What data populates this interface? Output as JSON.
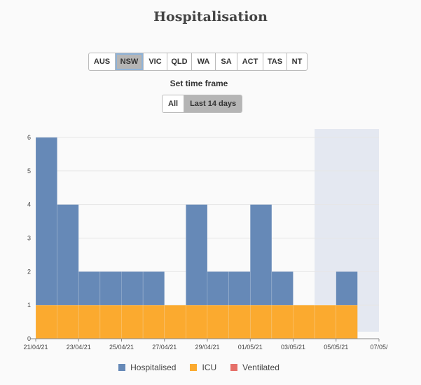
{
  "header": {
    "title": "Hospitalisation"
  },
  "regions": [
    {
      "label": "AUS",
      "active": false
    },
    {
      "label": "NSW",
      "active": true
    },
    {
      "label": "VIC",
      "active": false
    },
    {
      "label": "QLD",
      "active": false
    },
    {
      "label": "WA",
      "active": false
    },
    {
      "label": "SA",
      "active": false
    },
    {
      "label": "ACT",
      "active": false
    },
    {
      "label": "TAS",
      "active": false
    },
    {
      "label": "NT",
      "active": false
    }
  ],
  "timeframe": {
    "label": "Set time frame",
    "options": [
      {
        "label": "All",
        "active": false
      },
      {
        "label": "Last 14 days",
        "active": true
      }
    ]
  },
  "colors": {
    "hospitalised": "#6689b7",
    "icu": "#fbaa2f",
    "ventilated": "#e56f68",
    "forecast_band": "#e4e8f1",
    "grid": "#e6e6e6",
    "axis": "#888888",
    "text": "#444444"
  },
  "chart_data": {
    "type": "bar",
    "stacked": false,
    "x_dates": [
      "21/04/21",
      "22/04/21",
      "23/04/21",
      "24/04/21",
      "25/04/21",
      "26/04/21",
      "27/04/21",
      "28/04/21",
      "29/04/21",
      "30/04/21",
      "01/05/21",
      "02/05/21",
      "03/05/21",
      "04/05/21",
      "05/05/21",
      "06/05/21"
    ],
    "x_tick_labels": [
      "21/04/21",
      "23/04/21",
      "25/04/21",
      "27/04/21",
      "29/04/21",
      "01/05/21",
      "03/05/21",
      "05/05/21",
      "07/05/"
    ],
    "y_ticks": [
      0,
      1,
      2,
      3,
      4,
      5,
      6
    ],
    "ylim": [
      0,
      6.25
    ],
    "grid": true,
    "shaded_range": [
      "04/05/21",
      "07/05/21"
    ],
    "series": [
      {
        "name": "Hospitalised",
        "values": [
          6,
          4,
          2,
          2,
          2,
          2,
          0,
          4,
          2,
          2,
          4,
          2,
          0,
          0,
          2,
          0
        ]
      },
      {
        "name": "ICU",
        "values": [
          1,
          1,
          1,
          1,
          1,
          1,
          1,
          1,
          1,
          1,
          1,
          1,
          1,
          1,
          1,
          0
        ]
      },
      {
        "name": "Ventilated",
        "values": [
          0,
          0,
          0,
          0,
          0,
          0,
          0,
          0,
          0,
          0,
          0,
          0,
          0,
          0,
          0,
          0
        ]
      }
    ],
    "legend_position": "bottom"
  }
}
